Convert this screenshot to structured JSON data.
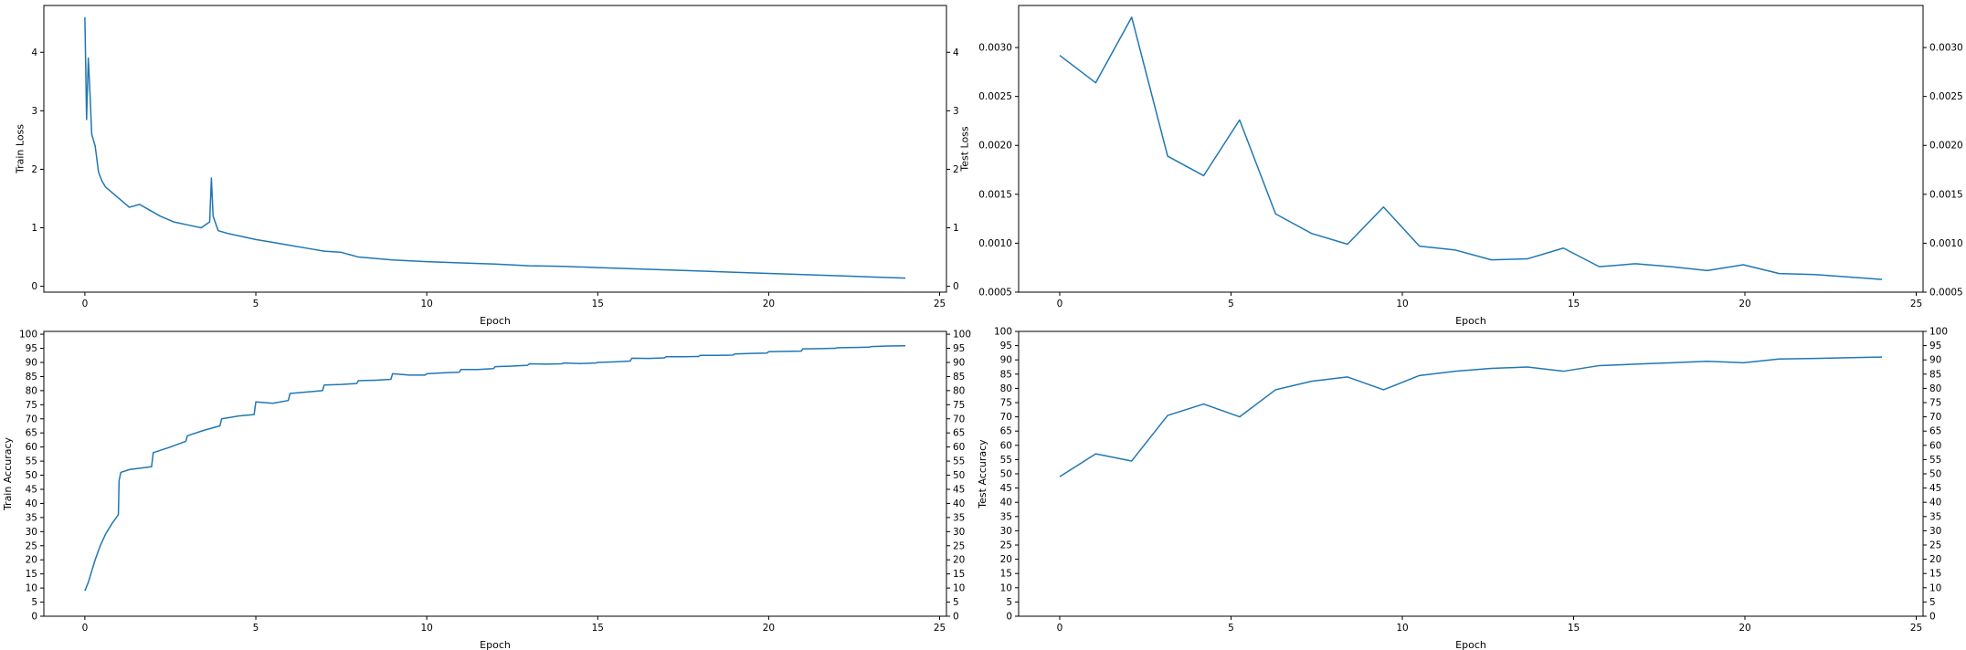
{
  "chart_data": [
    {
      "type": "line",
      "xlabel": "Epoch",
      "ylabel": "Train Loss",
      "xlim": [
        -1.2,
        25.2
      ],
      "ylim": [
        -0.1,
        4.8
      ],
      "xticks": [
        0,
        5,
        10,
        15,
        20,
        25
      ],
      "yticks": [
        0,
        1,
        2,
        3,
        4
      ],
      "ytick_labels": [
        "0",
        "1",
        "2",
        "3",
        "4"
      ],
      "right_axis_ticks": true,
      "grid": false,
      "color": "#1f77b4",
      "series": [
        {
          "x": [
            0.0,
            0.05,
            0.1,
            0.15,
            0.2,
            0.3,
            0.4,
            0.5,
            0.6,
            0.8,
            1.0,
            1.3,
            1.6,
            1.9,
            2.2,
            2.6,
            3.0,
            3.4,
            3.65,
            3.7,
            3.75,
            3.9,
            4.2,
            4.6,
            5.0,
            5.5,
            6.0,
            6.5,
            7.0,
            7.5,
            8.0,
            9.0,
            10.0,
            11.0,
            12.0,
            13.0,
            14.0,
            15.0,
            16.0,
            17.0,
            18.0,
            19.0,
            20.0,
            21.0,
            22.0,
            23.0,
            24.0
          ],
          "y": [
            4.6,
            2.85,
            3.9,
            3.3,
            2.6,
            2.4,
            1.95,
            1.8,
            1.7,
            1.6,
            1.5,
            1.35,
            1.4,
            1.3,
            1.2,
            1.1,
            1.05,
            1.0,
            1.1,
            1.85,
            1.2,
            0.95,
            0.9,
            0.85,
            0.8,
            0.75,
            0.7,
            0.65,
            0.6,
            0.58,
            0.5,
            0.45,
            0.42,
            0.4,
            0.38,
            0.35,
            0.34,
            0.32,
            0.3,
            0.28,
            0.26,
            0.24,
            0.22,
            0.2,
            0.18,
            0.16,
            0.14
          ]
        }
      ]
    },
    {
      "type": "line",
      "xlabel": "Epoch",
      "ylabel": "Test Loss",
      "xlim": [
        -1.2,
        25.2
      ],
      "ylim": [
        0.0005,
        0.00343
      ],
      "xticks": [
        0,
        5,
        10,
        15,
        20,
        25
      ],
      "yticks": [
        0.0005,
        0.001,
        0.0015,
        0.002,
        0.0025,
        0.003
      ],
      "ytick_labels": [
        "0.0005",
        "0.0010",
        "0.0015",
        "0.0020",
        "0.0025",
        "0.0030"
      ],
      "right_axis_ticks": true,
      "grid": false,
      "color": "#1f77b4",
      "series": [
        {
          "x": [
            0,
            1.05,
            2.1,
            3.15,
            4.2,
            5.25,
            6.3,
            7.35,
            8.4,
            9.45,
            10.5,
            11.55,
            12.6,
            13.65,
            14.7,
            15.75,
            16.8,
            17.85,
            18.9,
            19.95,
            21.0,
            22.05,
            24.0
          ],
          "y": [
            0.00292,
            0.00264,
            0.00331,
            0.00189,
            0.00169,
            0.00226,
            0.0013,
            0.0011,
            0.00099,
            0.00137,
            0.00097,
            0.00093,
            0.00083,
            0.00084,
            0.00095,
            0.00076,
            0.00079,
            0.00076,
            0.00072,
            0.00078,
            0.00069,
            0.00068,
            0.00063
          ]
        }
      ]
    },
    {
      "type": "line",
      "xlabel": "Epoch",
      "ylabel": "Train Accuracy",
      "xlim": [
        -1.2,
        25.2
      ],
      "ylim": [
        0,
        101
      ],
      "xticks": [
        0,
        5,
        10,
        15,
        20,
        25
      ],
      "yticks": [
        0,
        5,
        10,
        15,
        20,
        25,
        30,
        35,
        40,
        45,
        50,
        55,
        60,
        65,
        70,
        75,
        80,
        85,
        90,
        95,
        100
      ],
      "ytick_labels": [
        "0",
        "5",
        "10",
        "15",
        "20",
        "25",
        "30",
        "35",
        "40",
        "45",
        "50",
        "55",
        "60",
        "65",
        "70",
        "75",
        "80",
        "85",
        "90",
        "95",
        "100"
      ],
      "right_axis_ticks": true,
      "grid": false,
      "color": "#1f77b4",
      "series": [
        {
          "x": [
            0.0,
            0.1,
            0.2,
            0.3,
            0.45,
            0.6,
            0.8,
            0.98,
            1.0,
            1.05,
            1.3,
            1.6,
            1.95,
            2.0,
            2.5,
            2.95,
            3.0,
            3.5,
            3.95,
            4.0,
            4.5,
            4.95,
            5.0,
            5.5,
            5.95,
            6.0,
            6.5,
            6.95,
            7.0,
            7.5,
            7.95,
            8.0,
            8.5,
            8.95,
            9.0,
            9.5,
            9.95,
            10.0,
            10.5,
            10.95,
            11.0,
            11.5,
            11.95,
            12.0,
            12.5,
            12.95,
            13.0,
            13.5,
            13.95,
            14.0,
            14.5,
            14.95,
            15.0,
            15.5,
            15.95,
            16.0,
            16.5,
            16.95,
            17.0,
            17.5,
            17.95,
            18.0,
            18.5,
            18.95,
            19.0,
            19.5,
            19.95,
            20.0,
            20.5,
            20.95,
            21.0,
            21.5,
            21.95,
            22.0,
            22.5,
            22.95,
            23.0,
            23.5,
            24.0
          ],
          "y": [
            9,
            12,
            16,
            20,
            25,
            29,
            33,
            36,
            48,
            51,
            52,
            52.5,
            53,
            58,
            60,
            62,
            64,
            66,
            67.5,
            70,
            71,
            71.5,
            76,
            75.5,
            76.5,
            79,
            79.5,
            80,
            82,
            82.2,
            82.5,
            83.5,
            83.7,
            84,
            86,
            85.5,
            85.5,
            86,
            86.3,
            86.5,
            87.5,
            87.5,
            87.8,
            88.5,
            88.7,
            89,
            89.5,
            89.4,
            89.5,
            89.8,
            89.6,
            89.8,
            90,
            90.2,
            90.5,
            91.5,
            91.4,
            91.6,
            92,
            92,
            92.1,
            92.5,
            92.5,
            92.6,
            93,
            93.2,
            93.3,
            93.8,
            93.9,
            94,
            94.8,
            94.9,
            95,
            95.2,
            95.3,
            95.4,
            95.6,
            95.8,
            95.9
          ]
        }
      ]
    },
    {
      "type": "line",
      "xlabel": "Epoch",
      "ylabel": "Test Accuracy",
      "xlim": [
        -1.2,
        25.2
      ],
      "ylim": [
        0,
        100
      ],
      "xticks": [
        0,
        5,
        10,
        15,
        20,
        25
      ],
      "yticks": [
        0,
        5,
        10,
        15,
        20,
        25,
        30,
        35,
        40,
        45,
        50,
        55,
        60,
        65,
        70,
        75,
        80,
        85,
        90,
        95,
        100
      ],
      "ytick_labels": [
        "0",
        "5",
        "10",
        "15",
        "20",
        "25",
        "30",
        "35",
        "40",
        "45",
        "50",
        "55",
        "60",
        "65",
        "70",
        "75",
        "80",
        "85",
        "90",
        "95",
        "100"
      ],
      "right_axis_ticks": true,
      "grid": false,
      "color": "#1f77b4",
      "series": [
        {
          "x": [
            0,
            1.05,
            2.1,
            3.15,
            4.2,
            5.25,
            6.3,
            7.35,
            8.4,
            9.45,
            10.5,
            11.55,
            12.6,
            13.65,
            14.7,
            15.75,
            16.8,
            17.85,
            18.9,
            19.95,
            21.0,
            22.05,
            24.0
          ],
          "y": [
            49,
            57,
            54.5,
            70.5,
            74.5,
            70,
            79.5,
            82.5,
            84,
            79.5,
            84.5,
            86,
            87,
            87.5,
            86,
            88,
            88.5,
            89,
            89.5,
            89,
            90.3,
            90.5,
            91
          ]
        }
      ]
    }
  ]
}
